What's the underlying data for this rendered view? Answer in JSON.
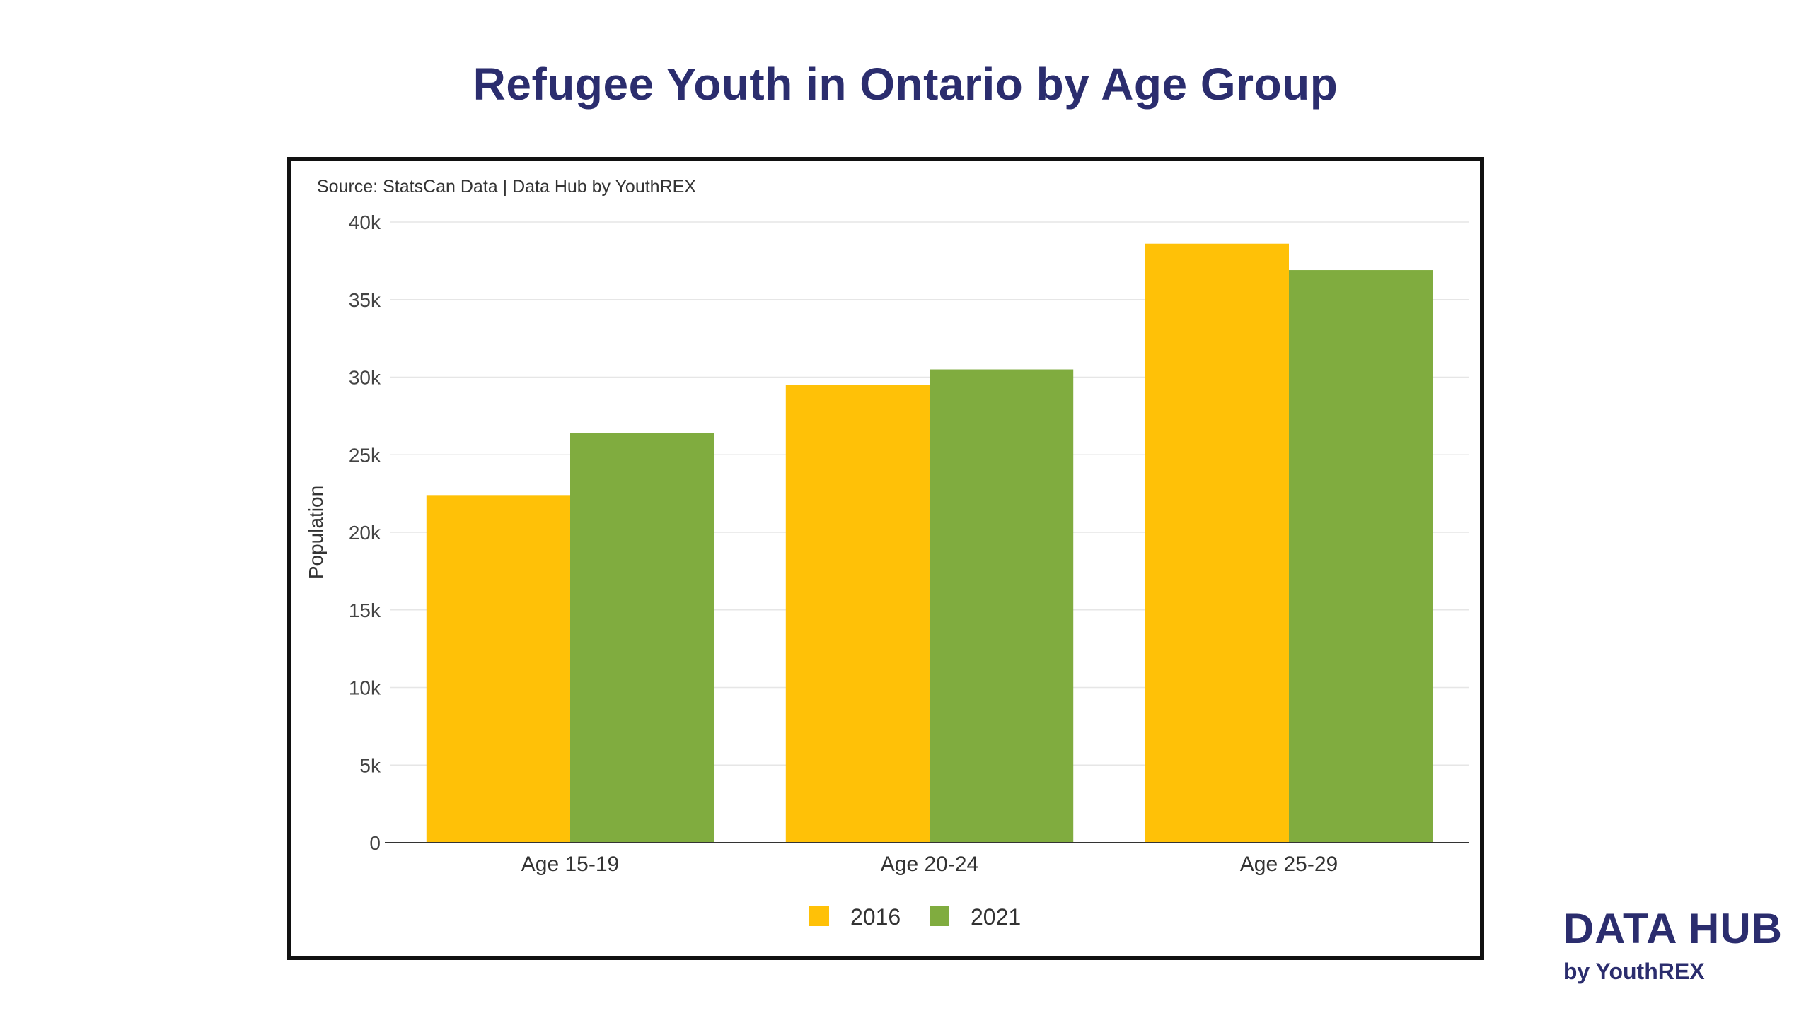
{
  "title": "Refugee Youth in Ontario by Age Group",
  "brand": {
    "name": "DATA HUB",
    "sub": "by YouthREX"
  },
  "colors": {
    "series_2016": "#FFC107",
    "series_2021": "#80AC3F",
    "title": "#2b2d6e"
  },
  "chart_data": {
    "type": "bar",
    "source_note": "Source: StatsCan Data | Data Hub by YouthREX",
    "categories": [
      "Age 15-19",
      "Age 20-24",
      "Age 25-29"
    ],
    "series": [
      {
        "name": "2016",
        "color": "#FFC107",
        "values": [
          22400,
          29500,
          38600
        ]
      },
      {
        "name": "2021",
        "color": "#80AC3F",
        "values": [
          26400,
          30500,
          36900
        ]
      }
    ],
    "ylabel": "Population",
    "xlabel": "",
    "ylim": [
      0,
      40000
    ],
    "yticks": [
      0,
      5000,
      10000,
      15000,
      20000,
      25000,
      30000,
      35000,
      40000
    ],
    "ytick_labels": [
      "0",
      "5k",
      "10k",
      "15k",
      "20k",
      "25k",
      "30k",
      "35k",
      "40k"
    ],
    "grid": true,
    "legend_position": "bottom-center"
  }
}
